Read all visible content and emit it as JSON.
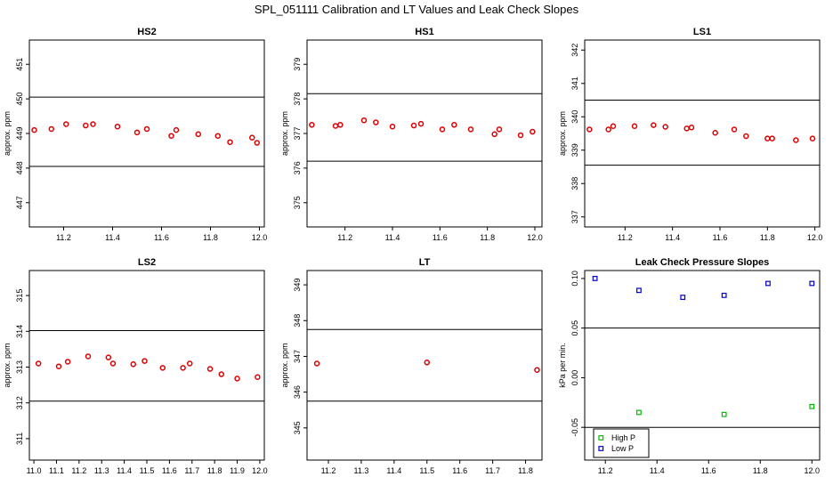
{
  "figure": {
    "title": "SPL_051111  Calibration and LT Values and Leak Check Slopes"
  },
  "colors": {
    "cal_points": "#dd0000",
    "high_p": "#00bb00",
    "low_p": "#0000cc",
    "axis": "#000000",
    "ref_line": "#000000"
  },
  "chart_data": [
    {
      "type": "scatter",
      "title": "HS2",
      "ylabel": "approx. ppm",
      "xlabel": "",
      "xlim": [
        11.06,
        12.02
      ],
      "ylim": [
        446.3,
        451.7
      ],
      "xticks": [
        "11.2",
        "11.4",
        "11.6",
        "11.8",
        "12.0"
      ],
      "yticks": [
        "447",
        "448",
        "449",
        "450",
        "451"
      ],
      "ref_lines": [
        448.05,
        450.05
      ],
      "grid": false,
      "x": [
        11.08,
        11.15,
        11.21,
        11.29,
        11.32,
        11.42,
        11.5,
        11.54,
        11.64,
        11.66,
        11.75,
        11.83,
        11.88,
        11.97,
        11.99
      ],
      "y": [
        449.1,
        449.13,
        449.27,
        449.23,
        449.27,
        449.2,
        449.03,
        449.13,
        448.93,
        449.1,
        448.98,
        448.93,
        448.75,
        448.88,
        448.73
      ]
    },
    {
      "type": "scatter",
      "title": "HS1",
      "ylabel": "approx. ppm",
      "xlabel": "",
      "xlim": [
        11.04,
        12.03
      ],
      "ylim": [
        374.3,
        379.7
      ],
      "xticks": [
        "11.2",
        "11.4",
        "11.6",
        "11.8",
        "12.0"
      ],
      "yticks": [
        "375",
        "376",
        "377",
        "378",
        "379"
      ],
      "ref_lines": [
        376.2,
        378.15
      ],
      "grid": false,
      "x": [
        11.06,
        11.16,
        11.18,
        11.28,
        11.33,
        11.4,
        11.49,
        11.52,
        11.61,
        11.66,
        11.73,
        11.83,
        11.85,
        11.94,
        11.99
      ],
      "y": [
        377.25,
        377.22,
        377.25,
        377.38,
        377.32,
        377.2,
        377.23,
        377.28,
        377.12,
        377.25,
        377.12,
        376.98,
        377.12,
        376.95,
        377.05
      ]
    },
    {
      "type": "scatter",
      "title": "LS1",
      "ylabel": "approx. ppm",
      "xlabel": "",
      "xlim": [
        11.03,
        12.02
      ],
      "ylim": [
        336.7,
        342.3
      ],
      "xticks": [
        "11.2",
        "11.4",
        "11.6",
        "11.8",
        "12.0"
      ],
      "yticks": [
        "337",
        "338",
        "339",
        "340",
        "341",
        "342"
      ],
      "ref_lines": [
        338.55,
        340.5
      ],
      "grid": false,
      "x": [
        11.05,
        11.13,
        11.15,
        11.24,
        11.32,
        11.37,
        11.46,
        11.48,
        11.58,
        11.66,
        11.71,
        11.8,
        11.82,
        11.92,
        11.99
      ],
      "y": [
        339.62,
        339.62,
        339.72,
        339.72,
        339.75,
        339.7,
        339.65,
        339.68,
        339.52,
        339.62,
        339.42,
        339.35,
        339.35,
        339.3,
        339.35
      ]
    },
    {
      "type": "scatter",
      "title": "LS2",
      "ylabel": "approx. ppm",
      "xlabel": "",
      "xlim": [
        10.98,
        12.02
      ],
      "ylim": [
        310.4,
        315.7
      ],
      "xticks": [
        "11.0",
        "11.1",
        "11.2",
        "11.3",
        "11.4",
        "11.5",
        "11.6",
        "11.7",
        "11.8",
        "11.9",
        "12.0"
      ],
      "yticks": [
        "311",
        "312",
        "313",
        "314",
        "315"
      ],
      "ref_lines": [
        312.05,
        314.02
      ],
      "grid": false,
      "x": [
        11.02,
        11.11,
        11.15,
        11.24,
        11.33,
        11.35,
        11.44,
        11.49,
        11.57,
        11.66,
        11.69,
        11.78,
        11.83,
        11.9,
        11.99
      ],
      "y": [
        313.1,
        313.02,
        313.15,
        313.3,
        313.27,
        313.1,
        313.08,
        313.17,
        312.98,
        312.98,
        313.1,
        312.95,
        312.8,
        312.68,
        312.72
      ]
    },
    {
      "type": "scatter",
      "title": "LT",
      "ylabel": "approx. ppm",
      "xlabel": "",
      "xlim": [
        11.135,
        11.85
      ],
      "ylim": [
        344.1,
        349.4
      ],
      "xticks": [
        "11.2",
        "11.3",
        "11.4",
        "11.5",
        "11.6",
        "11.7",
        "11.8"
      ],
      "yticks": [
        "345",
        "346",
        "347",
        "348",
        "349"
      ],
      "ref_lines": [
        345.75,
        347.75
      ],
      "grid": false,
      "x": [
        11.165,
        11.5,
        11.835
      ],
      "y": [
        346.8,
        346.83,
        346.62
      ]
    },
    {
      "type": "scatter",
      "title": "Leak Check Pressure Slopes",
      "ylabel": "kPa per min.",
      "xlabel": "",
      "xlim": [
        11.12,
        12.03
      ],
      "ylim": [
        -0.083,
        0.108
      ],
      "xticks": [
        "11.2",
        "11.4",
        "11.6",
        "11.8",
        "12.0"
      ],
      "yticks": [
        "-0.05",
        "0.00",
        "0.05",
        "0.10"
      ],
      "ref_lines": [
        -0.05,
        0.05
      ],
      "grid": false,
      "legend": {
        "position": "bottom-left",
        "entries": [
          "High P",
          "Low P"
        ]
      },
      "series": [
        {
          "name": "High P",
          "x": [
            11.33,
            11.66,
            12.0
          ],
          "y": [
            -0.035,
            -0.037,
            -0.029
          ]
        },
        {
          "name": "Low P",
          "x": [
            11.16,
            11.33,
            11.5,
            11.66,
            11.83,
            12.0
          ],
          "y": [
            0.1,
            0.088,
            0.081,
            0.083,
            0.095,
            0.095
          ]
        }
      ]
    }
  ]
}
